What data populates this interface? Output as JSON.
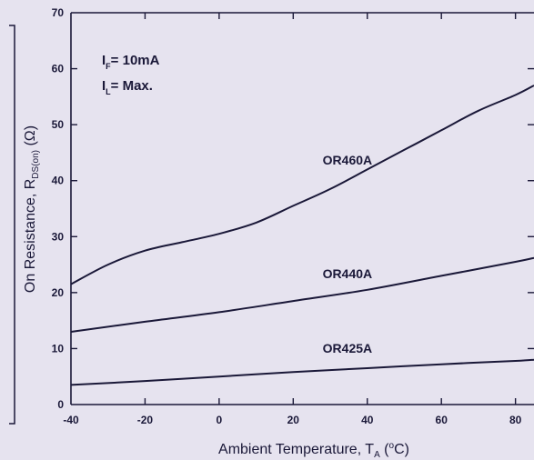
{
  "chart_data": {
    "type": "line",
    "xlabel": {
      "main": "Ambient Temperature, T",
      "sub": "A",
      "unit_open": " (",
      "unit_deg": "o",
      "unit_close": "C)"
    },
    "ylabel": {
      "main": "On Resistance, R",
      "sub": "DS(on)",
      "unit": " (Ω)"
    },
    "xlim": [
      -40,
      85
    ],
    "ylim": [
      0,
      70
    ],
    "x_ticks": [
      -40,
      -20,
      0,
      20,
      40,
      60,
      80
    ],
    "y_ticks": [
      0,
      10,
      20,
      30,
      40,
      50,
      60,
      70
    ],
    "conditions": [
      {
        "letter": "I",
        "sub": "F",
        "rest": "= 10mA"
      },
      {
        "letter": "I",
        "sub": "L",
        "rest": "= Max."
      }
    ],
    "series": [
      {
        "name": "OR460A",
        "x": [
          -40,
          -30,
          -20,
          -10,
          0,
          10,
          20,
          30,
          40,
          50,
          60,
          70,
          80,
          85
        ],
        "y": [
          21.5,
          25,
          27.5,
          29,
          30.5,
          32.5,
          35.5,
          38.5,
          42,
          45.5,
          49,
          52.5,
          55.3,
          57
        ]
      },
      {
        "name": "OR440A",
        "x": [
          -40,
          -20,
          0,
          20,
          40,
          60,
          80,
          85
        ],
        "y": [
          13,
          14.8,
          16.5,
          18.5,
          20.5,
          23,
          25.5,
          26.2
        ]
      },
      {
        "name": "OR425A",
        "x": [
          -40,
          -20,
          0,
          20,
          40,
          60,
          80,
          85
        ],
        "y": [
          3.5,
          4.2,
          5,
          5.8,
          6.5,
          7.2,
          7.8,
          8
        ]
      }
    ],
    "grid": false,
    "colors": {
      "background": "#e6e3ef",
      "line": "#1a1838"
    }
  }
}
